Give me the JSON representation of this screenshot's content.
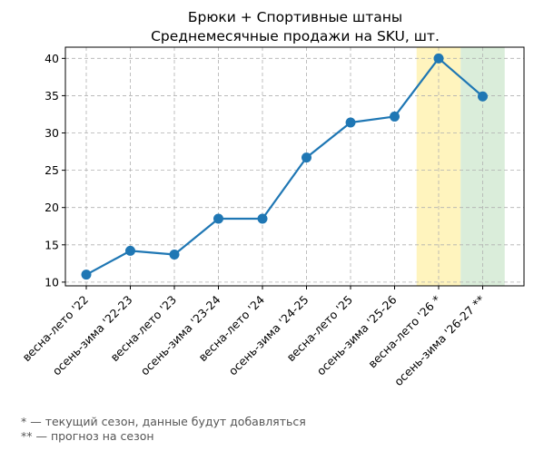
{
  "chart_data": {
    "type": "line",
    "title": "Брюки + Спортивные штаны",
    "subtitle": "Среднемесячные продажи на SKU, шт.",
    "categories": [
      "весна-лето '22",
      "осень-зима '22-23",
      "весна-лето '23",
      "осень-зима '23-24",
      "весна-лето '24",
      "осень-зима '24-25",
      "весна-лето '25",
      "осень-зима '25-26",
      "весна-лето '26 *",
      "осень-зима '26-27 **"
    ],
    "series": [
      {
        "values": [
          11.0,
          14.2,
          13.7,
          18.5,
          18.5,
          26.7,
          31.4,
          32.2,
          40.0,
          34.9
        ]
      }
    ],
    "ylim": [
      9.5,
      41.5
    ],
    "yticks": [
      10,
      15,
      20,
      25,
      30,
      35,
      40
    ],
    "grid": true,
    "line_color": "#1f77b4",
    "highlights": [
      {
        "category_index": 8,
        "color": "#fff2b3",
        "meaning": "current season"
      },
      {
        "category_index": 9,
        "color": "#d4ead4",
        "meaning": "forecast"
      }
    ]
  },
  "footnotes": [
    "* — текущий сезон, данные будут добавляться",
    "** — прогноз на сезон"
  ]
}
